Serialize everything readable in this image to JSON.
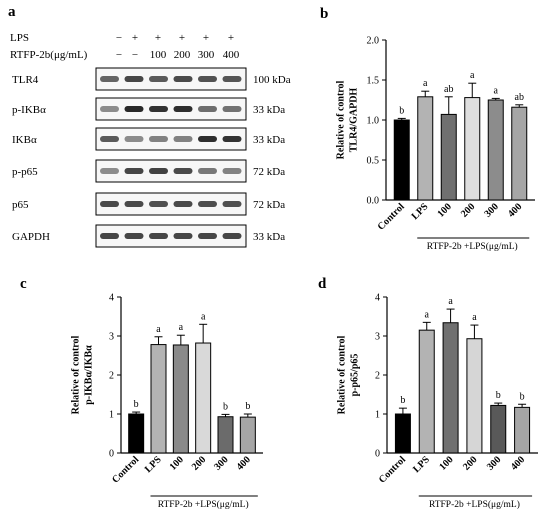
{
  "panels": {
    "a": "a",
    "b": "b",
    "c": "c",
    "d": "d"
  },
  "blot": {
    "conditions": [
      {
        "label": "LPS",
        "values": [
          "−",
          "+",
          "+",
          "+",
          "+",
          "+"
        ]
      },
      {
        "label": "RTFP-2b(μg/mL)",
        "values": [
          "−",
          "−",
          "100",
          "200",
          "300",
          "400"
        ]
      }
    ],
    "lanes": [
      {
        "label": "TLR4",
        "kda": "100 kDa",
        "intensity": [
          0.65,
          0.8,
          0.7,
          0.78,
          0.74,
          0.72
        ]
      },
      {
        "label": "p-IKBα",
        "kda": "33 kDa",
        "intensity": [
          0.45,
          0.95,
          0.9,
          0.92,
          0.6,
          0.58
        ]
      },
      {
        "label": "IKBα",
        "kda": "33 kDa",
        "intensity": [
          0.7,
          0.45,
          0.5,
          0.5,
          0.92,
          0.9
        ]
      },
      {
        "label": "p-p65",
        "kda": "72 kDa",
        "intensity": [
          0.45,
          0.8,
          0.82,
          0.78,
          0.55,
          0.5
        ]
      },
      {
        "label": "p65",
        "kda": "72 kDa",
        "intensity": [
          0.78,
          0.78,
          0.75,
          0.78,
          0.76,
          0.75
        ]
      },
      {
        "label": "GAPDH",
        "kda": "33 kDa",
        "intensity": [
          0.8,
          0.8,
          0.8,
          0.8,
          0.8,
          0.8
        ]
      }
    ]
  },
  "group_label": "RTFP-2b +LPS(μg/mL)",
  "chart_data": [
    {
      "panel": "b",
      "type": "bar",
      "categories": [
        "Control",
        "LPS",
        "100",
        "200",
        "300",
        "400"
      ],
      "values": [
        1.0,
        1.29,
        1.07,
        1.28,
        1.25,
        1.16
      ],
      "errors": [
        0.02,
        0.07,
        0.22,
        0.18,
        0.02,
        0.03
      ],
      "letters": [
        "b",
        "a",
        "ab",
        "a",
        "a",
        "ab"
      ],
      "colors": [
        "#000000",
        "#b3b3b3",
        "#707070",
        "#dedede",
        "#8c8c8c",
        "#a6a6a6"
      ],
      "ylabel": [
        "Relative of control",
        "TLR4/GAPDH"
      ],
      "ylim": [
        0,
        2.0
      ],
      "yticks": [
        "0.0",
        "0.5",
        "1.0",
        "1.5",
        "2.0"
      ],
      "group_label": "RTFP-2b +LPS(μg/mL)"
    },
    {
      "panel": "c",
      "type": "bar",
      "categories": [
        "Control",
        "LPS",
        "100",
        "200",
        "300",
        "400"
      ],
      "values": [
        1.0,
        2.78,
        2.77,
        2.82,
        0.93,
        0.92
      ],
      "errors": [
        0.05,
        0.2,
        0.25,
        0.48,
        0.06,
        0.08
      ],
      "letters": [
        "b",
        "a",
        "a",
        "a",
        "b",
        "b"
      ],
      "colors": [
        "#000000",
        "#b3b3b3",
        "#8a8a8a",
        "#d9d9d9",
        "#6b6b6b",
        "#a6a6a6"
      ],
      "ylabel": [
        "Relative of control",
        "p-IKBα/IKBα"
      ],
      "ylim": [
        0,
        4
      ],
      "yticks": [
        "0",
        "1",
        "2",
        "3",
        "4"
      ],
      "group_label": "RTFP-2b +LPS(μg/mL)"
    },
    {
      "panel": "d",
      "type": "bar",
      "categories": [
        "Control",
        "LPS",
        "100",
        "200",
        "300",
        "400"
      ],
      "values": [
        1.0,
        3.15,
        3.34,
        2.93,
        1.22,
        1.17
      ],
      "errors": [
        0.15,
        0.2,
        0.35,
        0.35,
        0.06,
        0.08
      ],
      "letters": [
        "b",
        "a",
        "a",
        "a",
        "b",
        "b"
      ],
      "colors": [
        "#000000",
        "#b3b3b3",
        "#707070",
        "#d6d6d6",
        "#595959",
        "#a6a6a6"
      ],
      "ylabel": [
        "Relative of control",
        "p-p65/p65"
      ],
      "ylim": [
        0,
        4
      ],
      "yticks": [
        "0",
        "1",
        "2",
        "3",
        "4"
      ],
      "group_label": "RTFP-2b +LPS(μg/mL)"
    }
  ]
}
